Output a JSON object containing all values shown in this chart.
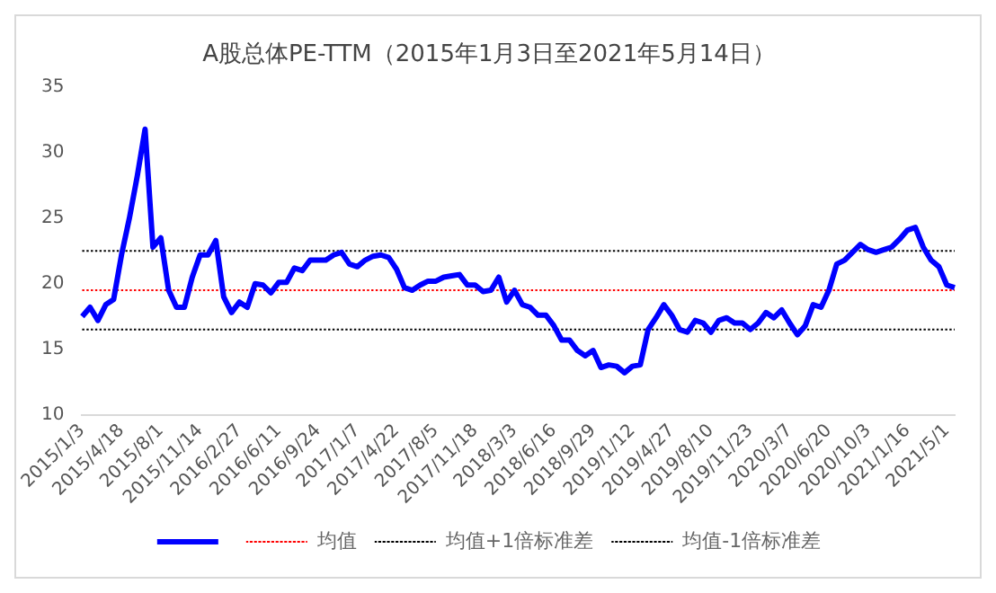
{
  "chart_data": {
    "type": "line",
    "title": "A股总体PE-TTM（2015年1月3日至2021年5月14日）",
    "categories": [
      "2015/1/3",
      null,
      null,
      null,
      null,
      "2015/4/18",
      null,
      null,
      null,
      null,
      "2015/8/1",
      null,
      null,
      null,
      null,
      "2015/11/14",
      null,
      null,
      null,
      null,
      "2016/2/27",
      null,
      null,
      null,
      null,
      "2016/6/11",
      null,
      null,
      null,
      null,
      "2016/9/24",
      null,
      null,
      null,
      null,
      "2017/1/7",
      null,
      null,
      null,
      null,
      "2017/4/22",
      null,
      null,
      null,
      null,
      "2017/8/5",
      null,
      null,
      null,
      null,
      "2017/11/18",
      null,
      null,
      null,
      null,
      "2018/3/3",
      null,
      null,
      null,
      null,
      "2018/6/16",
      null,
      null,
      null,
      null,
      "2018/9/29",
      null,
      null,
      null,
      null,
      "2019/1/12",
      null,
      null,
      null,
      null,
      "2019/4/27",
      null,
      null,
      null,
      null,
      "2019/8/10",
      null,
      null,
      null,
      null,
      "2019/11/23",
      null,
      null,
      null,
      null,
      "2020/3/7",
      null,
      null,
      null,
      null,
      "2020/6/20",
      null,
      null,
      null,
      null,
      "2020/10/3",
      null,
      null,
      null,
      null,
      "2021/1/16",
      null,
      null,
      null,
      null,
      "2021/5/1",
      null
    ],
    "series": [
      {
        "color": "#0000ff",
        "line_style": "solid",
        "values": [
          17.5,
          18.2,
          17.2,
          18.4,
          18.8,
          22.2,
          25.0,
          28.2,
          31.8,
          22.8,
          23.5,
          19.5,
          18.2,
          18.2,
          20.5,
          22.2,
          22.2,
          23.3,
          19.0,
          17.8,
          18.6,
          18.2,
          20.0,
          19.9,
          19.3,
          20.1,
          20.1,
          21.2,
          21.0,
          21.8,
          21.8,
          21.8,
          22.2,
          22.4,
          21.5,
          21.3,
          21.8,
          22.1,
          22.2,
          22.0,
          21.1,
          19.7,
          19.5,
          19.9,
          20.2,
          20.2,
          20.5,
          20.6,
          20.7,
          19.9,
          19.9,
          19.4,
          19.5,
          20.5,
          18.6,
          19.5,
          18.4,
          18.2,
          17.6,
          17.6,
          16.8,
          15.7,
          15.7,
          14.9,
          14.5,
          14.9,
          13.6,
          13.8,
          13.7,
          13.2,
          13.7,
          13.8,
          16.5,
          17.4,
          18.4,
          17.6,
          16.5,
          16.3,
          17.2,
          17.0,
          16.3,
          17.2,
          17.4,
          17.0,
          17.0,
          16.5,
          17.0,
          17.8,
          17.4,
          18.0,
          17.0,
          16.1,
          16.8,
          18.4,
          18.2,
          19.5,
          21.5,
          21.8,
          22.4,
          23.0,
          22.6,
          22.4,
          22.6,
          22.8,
          23.4,
          24.1,
          24.3,
          22.8,
          21.8,
          21.3,
          19.9,
          19.7
        ]
      },
      {
        "name": "均值",
        "color": "#ff0000",
        "line_style": "dotted",
        "values": [
          19.5,
          19.5,
          19.5,
          19.5,
          19.5,
          19.5,
          19.5,
          19.5,
          19.5,
          19.5,
          19.5,
          19.5,
          19.5,
          19.5,
          19.5,
          19.5,
          19.5,
          19.5,
          19.5,
          19.5,
          19.5,
          19.5,
          19.5,
          19.5,
          19.5,
          19.5,
          19.5,
          19.5,
          19.5,
          19.5,
          19.5,
          19.5,
          19.5,
          19.5,
          19.5,
          19.5,
          19.5,
          19.5,
          19.5,
          19.5,
          19.5,
          19.5,
          19.5,
          19.5,
          19.5,
          19.5,
          19.5,
          19.5,
          19.5,
          19.5,
          19.5,
          19.5,
          19.5,
          19.5,
          19.5,
          19.5,
          19.5,
          19.5,
          19.5,
          19.5,
          19.5,
          19.5,
          19.5,
          19.5,
          19.5,
          19.5,
          19.5,
          19.5,
          19.5,
          19.5,
          19.5,
          19.5,
          19.5,
          19.5,
          19.5,
          19.5,
          19.5,
          19.5,
          19.5,
          19.5,
          19.5,
          19.5,
          19.5,
          19.5,
          19.5,
          19.5,
          19.5,
          19.5,
          19.5,
          19.5,
          19.5,
          19.5,
          19.5,
          19.5,
          19.5,
          19.5,
          19.5,
          19.5,
          19.5,
          19.5,
          19.5,
          19.5,
          19.5,
          19.5,
          19.5,
          19.5,
          19.5,
          19.5,
          19.5,
          19.5,
          19.5,
          19.5
        ]
      },
      {
        "name": "均值+1倍标准差",
        "color": "#000000",
        "line_style": "dotted",
        "values": [
          22.5,
          22.5,
          22.5,
          22.5,
          22.5,
          22.5,
          22.5,
          22.5,
          22.5,
          22.5,
          22.5,
          22.5,
          22.5,
          22.5,
          22.5,
          22.5,
          22.5,
          22.5,
          22.5,
          22.5,
          22.5,
          22.5,
          22.5,
          22.5,
          22.5,
          22.5,
          22.5,
          22.5,
          22.5,
          22.5,
          22.5,
          22.5,
          22.5,
          22.5,
          22.5,
          22.5,
          22.5,
          22.5,
          22.5,
          22.5,
          22.5,
          22.5,
          22.5,
          22.5,
          22.5,
          22.5,
          22.5,
          22.5,
          22.5,
          22.5,
          22.5,
          22.5,
          22.5,
          22.5,
          22.5,
          22.5,
          22.5,
          22.5,
          22.5,
          22.5,
          22.5,
          22.5,
          22.5,
          22.5,
          22.5,
          22.5,
          22.5,
          22.5,
          22.5,
          22.5,
          22.5,
          22.5,
          22.5,
          22.5,
          22.5,
          22.5,
          22.5,
          22.5,
          22.5,
          22.5,
          22.5,
          22.5,
          22.5,
          22.5,
          22.5,
          22.5,
          22.5,
          22.5,
          22.5,
          22.5,
          22.5,
          22.5,
          22.5,
          22.5,
          22.5,
          22.5,
          22.5,
          22.5,
          22.5,
          22.5,
          22.5,
          22.5,
          22.5,
          22.5,
          22.5,
          22.5,
          22.5,
          22.5,
          22.5,
          22.5,
          22.5,
          22.5
        ]
      },
      {
        "name": "均值-1倍标准差",
        "color": "#000000",
        "line_style": "dotted",
        "values": [
          16.5,
          16.5,
          16.5,
          16.5,
          16.5,
          16.5,
          16.5,
          16.5,
          16.5,
          16.5,
          16.5,
          16.5,
          16.5,
          16.5,
          16.5,
          16.5,
          16.5,
          16.5,
          16.5,
          16.5,
          16.5,
          16.5,
          16.5,
          16.5,
          16.5,
          16.5,
          16.5,
          16.5,
          16.5,
          16.5,
          16.5,
          16.5,
          16.5,
          16.5,
          16.5,
          16.5,
          16.5,
          16.5,
          16.5,
          16.5,
          16.5,
          16.5,
          16.5,
          16.5,
          16.5,
          16.5,
          16.5,
          16.5,
          16.5,
          16.5,
          16.5,
          16.5,
          16.5,
          16.5,
          16.5,
          16.5,
          16.5,
          16.5,
          16.5,
          16.5,
          16.5,
          16.5,
          16.5,
          16.5,
          16.5,
          16.5,
          16.5,
          16.5,
          16.5,
          16.5,
          16.5,
          16.5,
          16.5,
          16.5,
          16.5,
          16.5,
          16.5,
          16.5,
          16.5,
          16.5,
          16.5,
          16.5,
          16.5,
          16.5,
          16.5,
          16.5,
          16.5,
          16.5,
          16.5,
          16.5,
          16.5,
          16.5,
          16.5,
          16.5,
          16.5,
          16.5,
          16.5,
          16.5,
          16.5,
          16.5,
          16.5,
          16.5,
          16.5,
          16.5,
          16.5,
          16.5,
          16.5,
          16.5,
          16.5,
          16.5,
          16.5,
          16.5
        ]
      }
    ],
    "ylim": [
      10,
      35
    ],
    "yticks": [
      10,
      15,
      20,
      25,
      30,
      35
    ],
    "legend": "bottom",
    "marker": "none"
  }
}
